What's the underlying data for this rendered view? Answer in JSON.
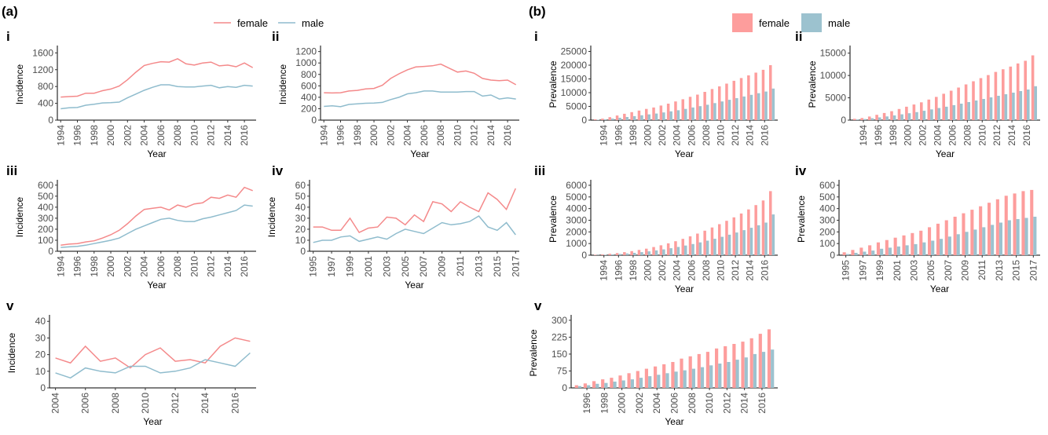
{
  "figure": {
    "label_a": "(a)",
    "label_b": "(b)"
  },
  "legend_a": {
    "female": "female",
    "male": "male"
  },
  "legend_b": {
    "female": "female",
    "male": "male"
  },
  "colors": {
    "female": "#f4898a",
    "male": "#8fbccd",
    "female_bar": "#fd9d9c",
    "male_bar": "#9cc2cf"
  },
  "chart_data": [
    {
      "id": "a-i",
      "panel": "(a)",
      "label": "i",
      "type": "line",
      "xlabel": "Year",
      "ylabel": "Incidence",
      "x": [
        1994,
        1995,
        1996,
        1997,
        1998,
        1999,
        2000,
        2001,
        2002,
        2003,
        2004,
        2005,
        2006,
        2007,
        2008,
        2009,
        2010,
        2011,
        2012,
        2013,
        2014,
        2015,
        2016,
        2017
      ],
      "xticks": [
        1994,
        1996,
        1998,
        2000,
        2002,
        2004,
        2006,
        2008,
        2010,
        2012,
        2014,
        2016
      ],
      "ylim": [
        0,
        1700
      ],
      "yticks": [
        0,
        400,
        800,
        1200,
        1600
      ],
      "series": [
        {
          "name": "female",
          "values": [
            550,
            560,
            570,
            640,
            640,
            700,
            740,
            810,
            960,
            1140,
            1300,
            1350,
            1390,
            1380,
            1460,
            1340,
            1310,
            1360,
            1380,
            1290,
            1310,
            1270,
            1360,
            1250
          ]
        },
        {
          "name": "male",
          "values": [
            270,
            295,
            300,
            355,
            380,
            410,
            415,
            430,
            530,
            620,
            710,
            780,
            840,
            840,
            800,
            790,
            790,
            810,
            830,
            770,
            800,
            780,
            830,
            810
          ]
        }
      ]
    },
    {
      "id": "a-ii",
      "panel": "(a)",
      "label": "ii",
      "type": "line",
      "xlabel": "Year",
      "ylabel": "Incidence",
      "x": [
        1994,
        1995,
        1996,
        1997,
        1998,
        1999,
        2000,
        2001,
        2002,
        2003,
        2004,
        2005,
        2006,
        2007,
        2008,
        2009,
        2010,
        2011,
        2012,
        2013,
        2014,
        2015,
        2016,
        2017
      ],
      "xticks": [
        1994,
        1996,
        1998,
        2000,
        2002,
        2004,
        2006,
        2008,
        2010,
        2012,
        2014,
        2016
      ],
      "ylim": [
        0,
        1250
      ],
      "yticks": [
        0,
        200,
        400,
        600,
        800,
        1000,
        1200
      ],
      "series": [
        {
          "name": "female",
          "values": [
            480,
            475,
            480,
            510,
            520,
            545,
            555,
            610,
            730,
            810,
            880,
            930,
            940,
            950,
            980,
            910,
            840,
            860,
            820,
            730,
            700,
            690,
            700,
            620
          ]
        },
        {
          "name": "male",
          "values": [
            240,
            250,
            235,
            275,
            285,
            295,
            300,
            310,
            360,
            400,
            460,
            480,
            510,
            510,
            490,
            490,
            490,
            500,
            500,
            420,
            440,
            370,
            390,
            370
          ]
        }
      ]
    },
    {
      "id": "a-iii",
      "panel": "(a)",
      "label": "iii",
      "type": "line",
      "xlabel": "Year",
      "ylabel": "Incidence",
      "x": [
        1994,
        1995,
        1996,
        1997,
        1998,
        1999,
        2000,
        2001,
        2002,
        2003,
        2004,
        2005,
        2006,
        2007,
        2008,
        2009,
        2010,
        2011,
        2012,
        2013,
        2014,
        2015,
        2016,
        2017
      ],
      "xticks": [
        1994,
        1996,
        1998,
        2000,
        2002,
        2004,
        2006,
        2008,
        2010,
        2012,
        2014,
        2016
      ],
      "ylim": [
        0,
        620
      ],
      "yticks": [
        0,
        100,
        200,
        300,
        400,
        500,
        600
      ],
      "series": [
        {
          "name": "female",
          "values": [
            55,
            65,
            70,
            85,
            95,
            120,
            150,
            190,
            250,
            320,
            380,
            390,
            400,
            375,
            420,
            400,
            430,
            440,
            490,
            480,
            510,
            490,
            580,
            550
          ]
        },
        {
          "name": "male",
          "values": [
            35,
            40,
            45,
            55,
            70,
            85,
            100,
            120,
            160,
            200,
            230,
            260,
            290,
            300,
            280,
            270,
            270,
            295,
            310,
            330,
            350,
            370,
            420,
            410
          ]
        }
      ]
    },
    {
      "id": "a-iv",
      "panel": "(a)",
      "label": "iv",
      "type": "line",
      "xlabel": "Year",
      "ylabel": "Incidence",
      "x": [
        1995,
        1996,
        1997,
        1998,
        1999,
        2000,
        2001,
        2002,
        2003,
        2004,
        2005,
        2006,
        2007,
        2008,
        2009,
        2010,
        2011,
        2012,
        2013,
        2014,
        2015,
        2016,
        2017
      ],
      "xticks": [
        1995,
        1997,
        1999,
        2001,
        2003,
        2005,
        2007,
        2009,
        2011,
        2013,
        2015,
        2017
      ],
      "ylim": [
        0,
        62
      ],
      "yticks": [
        0,
        10,
        20,
        30,
        40,
        50,
        60
      ],
      "series": [
        {
          "name": "female",
          "values": [
            22,
            22,
            19,
            19,
            30,
            17,
            21,
            22,
            31,
            30,
            24,
            33,
            27,
            45,
            43,
            36,
            45,
            40,
            36,
            53,
            47,
            38,
            57
          ]
        },
        {
          "name": "male",
          "values": [
            8,
            10,
            10,
            13,
            14,
            9,
            11,
            13,
            11,
            16,
            20,
            18,
            16,
            21,
            26,
            24,
            25,
            27,
            32,
            22,
            19,
            26,
            15
          ]
        }
      ]
    },
    {
      "id": "a-v",
      "panel": "(a)",
      "label": "v",
      "type": "line",
      "xlabel": "Year",
      "ylabel": "Incidence",
      "x": [
        2004,
        2005,
        2006,
        2007,
        2008,
        2009,
        2010,
        2011,
        2012,
        2013,
        2014,
        2015,
        2016,
        2017
      ],
      "xticks": [
        2004,
        2006,
        2008,
        2010,
        2012,
        2014,
        2016
      ],
      "ylim": [
        0,
        42
      ],
      "yticks": [
        0,
        10,
        20,
        30,
        40
      ],
      "series": [
        {
          "name": "female",
          "values": [
            18,
            15,
            25,
            16,
            18,
            12,
            20,
            24,
            16,
            17,
            15,
            25,
            30,
            28
          ]
        },
        {
          "name": "male",
          "values": [
            9,
            6,
            12,
            10,
            9,
            13,
            13,
            9,
            10,
            12,
            17,
            15,
            13,
            21
          ]
        }
      ]
    },
    {
      "id": "b-i",
      "panel": "(b)",
      "label": "i",
      "type": "bar",
      "xlabel": "Year",
      "ylabel": "Prevalence",
      "x": [
        1993,
        1994,
        1995,
        1996,
        1997,
        1998,
        1999,
        2000,
        2001,
        2002,
        2003,
        2004,
        2005,
        2006,
        2007,
        2008,
        2009,
        2010,
        2011,
        2012,
        2013,
        2014,
        2015,
        2016,
        2017
      ],
      "xticks": [
        1994,
        1996,
        1998,
        2000,
        2002,
        2004,
        2006,
        2008,
        2010,
        2012,
        2014,
        2016
      ],
      "ylim": [
        0,
        26000
      ],
      "yticks": [
        0,
        5000,
        10000,
        15000,
        20000,
        25000
      ],
      "series": [
        {
          "name": "female",
          "values": [
            300,
            550,
            1100,
            1700,
            2300,
            2900,
            3500,
            4100,
            4600,
            5300,
            6000,
            6800,
            7600,
            8500,
            9300,
            10300,
            11300,
            12300,
            13300,
            14300,
            15300,
            16300,
            17300,
            18300,
            20000
          ]
        },
        {
          "name": "male",
          "values": [
            150,
            280,
            560,
            860,
            1150,
            1460,
            1770,
            2100,
            2400,
            2800,
            3200,
            3600,
            4100,
            4600,
            5100,
            5600,
            6200,
            6800,
            7400,
            8000,
            8600,
            9200,
            9800,
            10400,
            11500
          ]
        }
      ]
    },
    {
      "id": "b-ii",
      "panel": "(b)",
      "label": "ii",
      "type": "bar",
      "xlabel": "Year",
      "ylabel": "Prevalence",
      "x": [
        1993,
        1994,
        1995,
        1996,
        1997,
        1998,
        1999,
        2000,
        2001,
        2002,
        2003,
        2004,
        2005,
        2006,
        2007,
        2008,
        2009,
        2010,
        2011,
        2012,
        2013,
        2014,
        2015,
        2016,
        2017
      ],
      "xticks": [
        1994,
        1996,
        1998,
        2000,
        2002,
        2004,
        2006,
        2008,
        2010,
        2012,
        2014,
        2016
      ],
      "ylim": [
        0,
        16000
      ],
      "yticks": [
        0,
        5000,
        10000,
        15000
      ],
      "series": [
        {
          "name": "female",
          "values": [
            300,
            480,
            800,
            1200,
            1600,
            2000,
            2500,
            3000,
            3500,
            4000,
            4600,
            5200,
            5900,
            6600,
            7300,
            8000,
            8700,
            9400,
            10100,
            10800,
            11400,
            12000,
            12700,
            13300,
            14500
          ]
        },
        {
          "name": "male",
          "values": [
            150,
            250,
            420,
            620,
            820,
            1050,
            1300,
            1550,
            1800,
            2100,
            2400,
            2700,
            3000,
            3350,
            3700,
            4050,
            4400,
            4750,
            5100,
            5450,
            5800,
            6150,
            6500,
            6850,
            7600
          ]
        }
      ]
    },
    {
      "id": "b-iii",
      "panel": "(b)",
      "label": "iii",
      "type": "bar",
      "xlabel": "Year",
      "ylabel": "Prevalence",
      "x": [
        1993,
        1994,
        1995,
        1996,
        1997,
        1998,
        1999,
        2000,
        2001,
        2002,
        2003,
        2004,
        2005,
        2006,
        2007,
        2008,
        2009,
        2010,
        2011,
        2012,
        2013,
        2014,
        2015,
        2016,
        2017
      ],
      "xticks": [
        1994,
        1996,
        1998,
        2000,
        2002,
        2004,
        2006,
        2008,
        2010,
        2012,
        2014,
        2016
      ],
      "ylim": [
        0,
        6200
      ],
      "yticks": [
        0,
        1000,
        2000,
        3000,
        4000,
        5000,
        6000
      ],
      "series": [
        {
          "name": "female",
          "values": [
            40,
            70,
            120,
            180,
            260,
            350,
            450,
            560,
            700,
            850,
            1020,
            1200,
            1400,
            1620,
            1850,
            2100,
            2380,
            2660,
            2950,
            3250,
            3580,
            3930,
            4300,
            4700,
            5500
          ]
        },
        {
          "name": "male",
          "values": [
            20,
            40,
            70,
            110,
            150,
            200,
            260,
            330,
            410,
            500,
            600,
            710,
            830,
            960,
            1100,
            1250,
            1410,
            1580,
            1760,
            1950,
            2150,
            2350,
            2570,
            2800,
            3500
          ]
        }
      ]
    },
    {
      "id": "b-iv",
      "panel": "(b)",
      "label": "iv",
      "type": "bar",
      "xlabel": "Year",
      "ylabel": "Prevalence",
      "x": [
        1995,
        1996,
        1997,
        1998,
        1999,
        2000,
        2001,
        2002,
        2003,
        2004,
        2005,
        2006,
        2007,
        2008,
        2009,
        2010,
        2011,
        2012,
        2013,
        2014,
        2015,
        2016,
        2017
      ],
      "xticks": [
        1995,
        1997,
        1999,
        2001,
        2003,
        2005,
        2007,
        2009,
        2011,
        2013,
        2015,
        2017
      ],
      "ylim": [
        0,
        620
      ],
      "yticks": [
        0,
        100,
        200,
        300,
        400,
        500,
        600
      ],
      "series": [
        {
          "name": "female",
          "values": [
            25,
            45,
            65,
            85,
            110,
            130,
            150,
            170,
            190,
            210,
            240,
            270,
            300,
            330,
            360,
            390,
            420,
            450,
            480,
            510,
            530,
            550,
            560
          ]
        },
        {
          "name": "male",
          "values": [
            10,
            20,
            30,
            40,
            55,
            65,
            75,
            85,
            95,
            110,
            125,
            140,
            160,
            180,
            200,
            220,
            240,
            260,
            280,
            300,
            310,
            320,
            330
          ]
        }
      ]
    },
    {
      "id": "b-v",
      "panel": "(b)",
      "label": "v",
      "type": "bar",
      "xlabel": "Year",
      "ylabel": "Prevalence",
      "x": [
        1995,
        1996,
        1997,
        1998,
        1999,
        2000,
        2001,
        2002,
        2003,
        2004,
        2005,
        2006,
        2007,
        2008,
        2009,
        2010,
        2011,
        2012,
        2013,
        2014,
        2015,
        2016,
        2017
      ],
      "xticks": [
        1996,
        1998,
        2000,
        2002,
        2004,
        2006,
        2008,
        2010,
        2012,
        2014,
        2016
      ],
      "ylim": [
        0,
        310
      ],
      "yticks": [
        0,
        75,
        150,
        225,
        300
      ],
      "series": [
        {
          "name": "female",
          "values": [
            12,
            20,
            30,
            38,
            45,
            55,
            65,
            75,
            85,
            95,
            105,
            115,
            130,
            140,
            150,
            160,
            175,
            185,
            195,
            205,
            220,
            240,
            260
          ]
        },
        {
          "name": "male",
          "values": [
            8,
            12,
            18,
            22,
            28,
            33,
            38,
            45,
            52,
            58,
            65,
            72,
            78,
            85,
            92,
            100,
            108,
            115,
            125,
            135,
            150,
            160,
            170
          ]
        }
      ]
    }
  ]
}
